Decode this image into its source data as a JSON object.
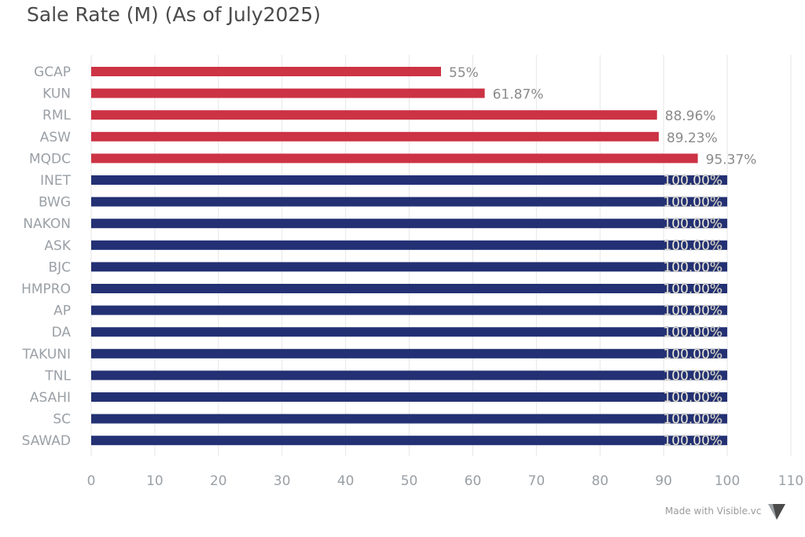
{
  "chart_data": {
    "type": "bar",
    "orientation": "horizontal",
    "title": "Sale Rate (M) (As of July2025)",
    "categories": [
      "GCAP",
      "KUN",
      "RML",
      "ASW",
      "MQDC",
      "INET",
      "BWG",
      "NAKON",
      "ASK",
      "BJC",
      "HMPRO",
      "AP",
      "DA",
      "TAKUNI",
      "TNL",
      "ASAHI",
      "SC",
      "SAWAD"
    ],
    "values": [
      55,
      61.87,
      88.96,
      89.23,
      95.37,
      100,
      100,
      100,
      100,
      100,
      100,
      100,
      100,
      100,
      100,
      100,
      100,
      100
    ],
    "value_labels": [
      "55%",
      "61.87%",
      "88.96%",
      "89.23%",
      "95.37%",
      "100.00%",
      "100.00%",
      "100.00%",
      "100.00%",
      "100.00%",
      "100.00%",
      "100.00%",
      "100.00%",
      "100.00%",
      "100.00%",
      "100.00%",
      "100.00%",
      "100.00%"
    ],
    "bar_colors": [
      "#cc3344",
      "#cc3344",
      "#cc3344",
      "#cc3344",
      "#cc3344",
      "#233174",
      "#233174",
      "#233174",
      "#233174",
      "#233174",
      "#233174",
      "#233174",
      "#233174",
      "#233174",
      "#233174",
      "#233174",
      "#233174",
      "#233174"
    ],
    "xlim": [
      0,
      110
    ],
    "xticks": [
      0,
      10,
      20,
      30,
      40,
      50,
      60,
      70,
      80,
      90,
      100,
      110
    ],
    "grid": true,
    "xlabel": "",
    "ylabel": ""
  },
  "footer": {
    "credit": "Made with Visible.vc",
    "logo_icon": "visible-logo-icon"
  }
}
